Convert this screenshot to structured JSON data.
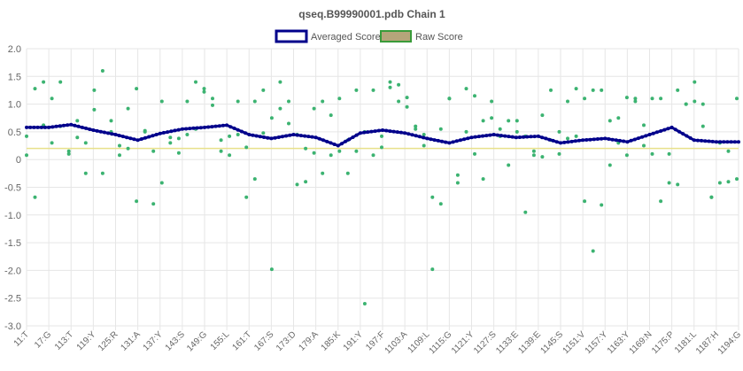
{
  "chart_data": {
    "type": "line",
    "title": "qseq.B99990001.pdb Chain 1",
    "xlabel": "",
    "ylabel": "",
    "ylim": [
      -3.0,
      2.0
    ],
    "yticks": [
      "2.0",
      "1.5",
      "1.0",
      "0.5",
      "0",
      "-0.5",
      "-1.0",
      "-1.5",
      "-2.0",
      "-2.5",
      "-3.0"
    ],
    "grid": true,
    "legend_position": "top",
    "threshold": 0.2,
    "x": [
      "11:T",
      "17:G",
      "113:T",
      "119:Y",
      "125:R",
      "131:A",
      "137:Y",
      "143:S",
      "149:G",
      "155:L",
      "161:T",
      "167:S",
      "173:D",
      "179:A",
      "185:K",
      "191:Y",
      "197:F",
      "1103:A",
      "1109:L",
      "1115:G",
      "1121:Y",
      "1127:S",
      "1133:E",
      "1139:E",
      "1145:S",
      "1151:V",
      "1157:Y",
      "1163:Y",
      "1169:N",
      "1175:P",
      "1181:L",
      "1187:H",
      "1194:G"
    ],
    "series": [
      {
        "name": "Averaged Score",
        "color": "#00008b",
        "values": [
          0.58,
          0.58,
          0.63,
          0.53,
          0.45,
          0.35,
          0.47,
          0.55,
          0.58,
          0.62,
          0.45,
          0.38,
          0.45,
          0.4,
          0.25,
          0.48,
          0.53,
          0.48,
          0.38,
          0.3,
          0.4,
          0.45,
          0.4,
          0.42,
          0.3,
          0.35,
          0.38,
          0.32,
          0.45,
          0.58,
          0.35,
          0.32,
          0.32
        ]
      },
      {
        "name": "Raw Score",
        "color": "#3cb371",
        "points": [
          [
            0,
            0.08
          ],
          [
            0,
            0.42
          ],
          [
            1,
            -0.68
          ],
          [
            1,
            1.28
          ],
          [
            2,
            1.4
          ],
          [
            2,
            0.62
          ],
          [
            3,
            1.1
          ],
          [
            3,
            0.3
          ],
          [
            4,
            1.4
          ],
          [
            4,
            0.6
          ],
          [
            5,
            0.15
          ],
          [
            5,
            0.1
          ],
          [
            6,
            0.7
          ],
          [
            6,
            0.4
          ],
          [
            7,
            -0.25
          ],
          [
            7,
            0.3
          ],
          [
            8,
            0.9
          ],
          [
            8,
            1.25
          ],
          [
            9,
            -0.25
          ],
          [
            9,
            1.6
          ],
          [
            10,
            0.5
          ],
          [
            10,
            0.7
          ],
          [
            11,
            0.08
          ],
          [
            11,
            0.25
          ],
          [
            12,
            0.92
          ],
          [
            12,
            0.2
          ],
          [
            13,
            1.28
          ],
          [
            13,
            -0.75
          ],
          [
            14,
            0.5
          ],
          [
            14,
            0.52
          ],
          [
            15,
            0.15
          ],
          [
            15,
            -0.8
          ],
          [
            16,
            1.05
          ],
          [
            16,
            -0.42
          ],
          [
            17,
            0.3
          ],
          [
            17,
            0.4
          ],
          [
            18,
            0.12
          ],
          [
            18,
            0.38
          ],
          [
            19,
            1.05
          ],
          [
            19,
            0.45
          ],
          [
            20,
            1.4
          ],
          [
            20,
            0.55
          ],
          [
            21,
            1.28
          ],
          [
            21,
            1.22
          ],
          [
            22,
            1.1
          ],
          [
            22,
            0.98
          ],
          [
            23,
            0.15
          ],
          [
            23,
            0.35
          ],
          [
            24,
            0.08
          ],
          [
            24,
            0.42
          ],
          [
            25,
            1.05
          ],
          [
            25,
            0.45
          ],
          [
            26,
            0.22
          ],
          [
            26,
            -0.68
          ],
          [
            27,
            -0.35
          ],
          [
            27,
            1.05
          ],
          [
            28,
            1.25
          ],
          [
            28,
            0.48
          ],
          [
            29,
            -1.98
          ],
          [
            29,
            0.75
          ],
          [
            30,
            1.4
          ],
          [
            30,
            0.92
          ],
          [
            31,
            0.65
          ],
          [
            31,
            1.05
          ],
          [
            32,
            0.45
          ],
          [
            32,
            -0.45
          ],
          [
            33,
            -0.4
          ],
          [
            33,
            0.2
          ],
          [
            34,
            0.12
          ],
          [
            34,
            0.92
          ],
          [
            35,
            -0.25
          ],
          [
            35,
            1.05
          ],
          [
            36,
            0.08
          ],
          [
            36,
            0.8
          ],
          [
            37,
            0.15
          ],
          [
            37,
            1.1
          ],
          [
            38,
            -0.25
          ],
          [
            38,
            0.35
          ],
          [
            39,
            0.15
          ],
          [
            39,
            1.25
          ],
          [
            40,
            -2.6
          ],
          [
            40,
            0.5
          ],
          [
            41,
            0.08
          ],
          [
            41,
            1.25
          ],
          [
            42,
            0.22
          ],
          [
            42,
            0.42
          ],
          [
            43,
            1.4
          ],
          [
            43,
            1.3
          ],
          [
            44,
            1.35
          ],
          [
            44,
            1.05
          ],
          [
            45,
            0.95
          ],
          [
            45,
            1.12
          ],
          [
            46,
            0.55
          ],
          [
            46,
            0.6
          ],
          [
            47,
            0.25
          ],
          [
            47,
            0.45
          ],
          [
            48,
            -0.68
          ],
          [
            48,
            -1.98
          ],
          [
            49,
            0.55
          ],
          [
            49,
            -0.8
          ],
          [
            50,
            1.1
          ],
          [
            50,
            1.1
          ],
          [
            51,
            -0.28
          ],
          [
            51,
            -0.42
          ],
          [
            52,
            1.28
          ],
          [
            52,
            0.5
          ],
          [
            53,
            0.1
          ],
          [
            53,
            1.15
          ],
          [
            54,
            0.7
          ],
          [
            54,
            -0.35
          ],
          [
            55,
            1.05
          ],
          [
            55,
            0.75
          ],
          [
            56,
            0.42
          ],
          [
            56,
            0.55
          ],
          [
            57,
            -0.1
          ],
          [
            57,
            0.7
          ],
          [
            58,
            0.5
          ],
          [
            58,
            0.7
          ],
          [
            59,
            -0.95
          ],
          [
            59,
            0.42
          ],
          [
            60,
            0.15
          ],
          [
            60,
            0.08
          ],
          [
            61,
            0.8
          ],
          [
            61,
            0.05
          ],
          [
            62,
            0.35
          ],
          [
            62,
            1.25
          ],
          [
            63,
            0.5
          ],
          [
            63,
            0.1
          ],
          [
            64,
            0.38
          ],
          [
            64,
            1.05
          ],
          [
            65,
            1.28
          ],
          [
            65,
            0.42
          ],
          [
            66,
            -0.75
          ],
          [
            66,
            1.1
          ],
          [
            67,
            1.25
          ],
          [
            67,
            -1.65
          ],
          [
            68,
            -0.82
          ],
          [
            68,
            1.25
          ],
          [
            69,
            0.7
          ],
          [
            69,
            -0.1
          ],
          [
            70,
            0.75
          ],
          [
            70,
            0.3
          ],
          [
            71,
            0.08
          ],
          [
            71,
            1.12
          ],
          [
            72,
            1.1
          ],
          [
            72,
            1.05
          ],
          [
            73,
            0.25
          ],
          [
            73,
            0.62
          ],
          [
            74,
            0.1
          ],
          [
            74,
            1.1
          ],
          [
            75,
            -0.75
          ],
          [
            75,
            1.1
          ],
          [
            76,
            -0.42
          ],
          [
            76,
            0.1
          ],
          [
            77,
            1.25
          ],
          [
            77,
            -0.45
          ],
          [
            78,
            1.0
          ],
          [
            78,
            1.0
          ],
          [
            79,
            1.05
          ],
          [
            79,
            1.4
          ],
          [
            80,
            0.6
          ],
          [
            80,
            1.0
          ],
          [
            81,
            -0.68
          ],
          [
            81,
            -0.68
          ],
          [
            82,
            -0.42
          ],
          [
            82,
            0.3
          ],
          [
            83,
            0.15
          ],
          [
            83,
            -0.4
          ],
          [
            84,
            -0.35
          ],
          [
            84,
            1.1
          ]
        ]
      }
    ]
  }
}
